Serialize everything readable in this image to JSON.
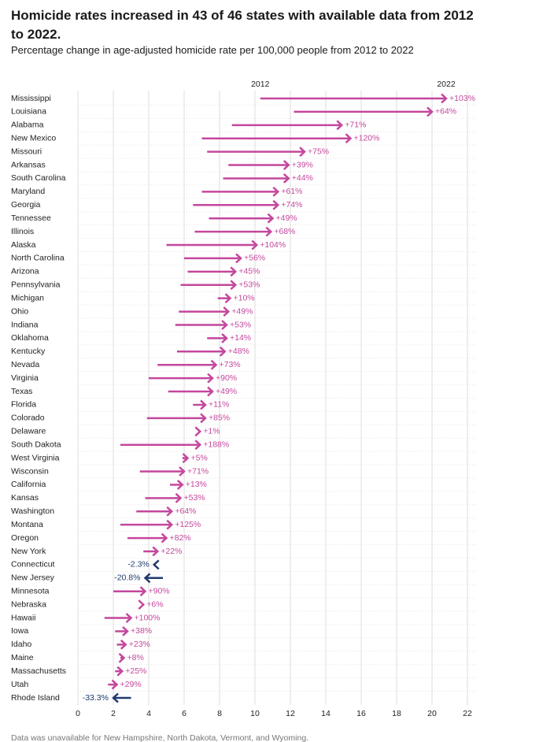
{
  "chart_data": {
    "type": "arrow",
    "title": "Homicide rates increased in 43 of 46 states with available data from 2012 to 2022.",
    "subtitle": "Percentage change in age-adjusted homicide rate per 100,000 people from 2012 to 2022",
    "categories": [
      "Mississippi",
      "Louisiana",
      "Alabama",
      "New Mexico",
      "Missouri",
      "Arkansas",
      "South Carolina",
      "Maryland",
      "Georgia",
      "Tennessee",
      "Illinois",
      "Alaska",
      "North Carolina",
      "Arizona",
      "Pennsylvania",
      "Michigan",
      "Ohio",
      "Indiana",
      "Oklahoma",
      "Kentucky",
      "Nevada",
      "Virginia",
      "Texas",
      "Florida",
      "Colorado",
      "Delaware",
      "South Dakota",
      "West Virginia",
      "Wisconsin",
      "California",
      "Kansas",
      "Washington",
      "Montana",
      "Oregon",
      "New York",
      "Connecticut",
      "New Jersey",
      "Minnesota",
      "Nebraska",
      "Hawaii",
      "Iowa",
      "Idaho",
      "Maine",
      "Massachusetts",
      "Utah",
      "Rhode Island"
    ],
    "series": [
      {
        "name": "2012",
        "values": [
          10.3,
          12.2,
          8.7,
          7.0,
          7.3,
          8.5,
          8.2,
          7.0,
          6.5,
          7.4,
          6.6,
          5.0,
          6.0,
          6.2,
          5.8,
          7.9,
          5.7,
          5.5,
          7.3,
          5.6,
          4.5,
          4.0,
          5.1,
          6.5,
          3.9,
          6.8,
          2.4,
          5.9,
          3.5,
          5.2,
          3.8,
          3.3,
          2.4,
          2.8,
          3.7,
          4.4,
          4.8,
          2.0,
          3.6,
          1.5,
          2.1,
          2.2,
          2.4,
          2.1,
          1.7,
          3.0
        ]
      },
      {
        "name": "2022",
        "values": [
          20.8,
          20.0,
          14.9,
          15.4,
          12.8,
          11.9,
          11.9,
          11.3,
          11.3,
          11.0,
          10.9,
          10.1,
          9.2,
          8.9,
          8.9,
          8.6,
          8.5,
          8.4,
          8.4,
          8.3,
          7.8,
          7.6,
          7.6,
          7.2,
          7.2,
          6.9,
          6.9,
          6.2,
          6.0,
          5.9,
          5.8,
          5.3,
          5.3,
          5.0,
          4.5,
          4.3,
          3.8,
          3.8,
          3.7,
          3.0,
          2.8,
          2.7,
          2.6,
          2.5,
          2.2,
          2.0
        ]
      }
    ],
    "change": {
      "values": [
        103,
        64,
        71,
        120,
        75,
        39,
        44,
        61,
        74,
        49,
        68,
        104,
        56,
        45,
        53,
        10,
        49,
        53,
        14,
        48,
        73,
        90,
        49,
        11,
        85,
        1,
        188,
        5,
        71,
        13,
        53,
        64,
        125,
        82,
        22,
        -2.3,
        -20.8,
        90,
        6,
        100,
        38,
        23,
        8,
        25,
        29,
        -33.3
      ],
      "value_labels": [
        "+103%",
        "+64%",
        "+71%",
        "+120%",
        "+75%",
        "+39%",
        "+44%",
        "+61%",
        "+74%",
        "+49%",
        "+68%",
        "+104%",
        "+56%",
        "+45%",
        "+53%",
        "+10%",
        "+49%",
        "+53%",
        "+14%",
        "+48%",
        "+73%",
        "+90%",
        "+49%",
        "+11%",
        "+85%",
        "+1%",
        "+188%",
        "+5%",
        "+71%",
        "+13%",
        "+53%",
        "+64%",
        "+125%",
        "+82%",
        "+22%",
        "-2.3%",
        "-20.8%",
        "+90%",
        "+6%",
        "+100%",
        "+38%",
        "+23%",
        "+8%",
        "+25%",
        "+29%",
        "-33.3%"
      ]
    },
    "colors": {
      "increase": "#c4479c",
      "decrease": "#1f3b6e"
    },
    "xlim": [
      0,
      22
    ],
    "xticks": [
      0,
      2,
      4,
      6,
      8,
      10,
      12,
      14,
      16,
      18,
      20,
      22
    ],
    "grid": true,
    "note": "Data was unavailable for New Hampshire, North Dakota, Vermont, and Wyoming."
  }
}
